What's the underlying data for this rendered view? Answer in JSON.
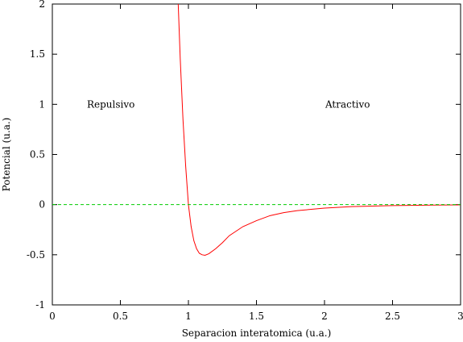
{
  "chart_data": {
    "type": "line",
    "xlabel": "Separacion interatomica (u.a.)",
    "ylabel": "Potencial (u.a.)",
    "xlim": [
      0,
      3
    ],
    "ylim": [
      -1,
      2
    ],
    "x_ticks": [
      0,
      0.5,
      1,
      1.5,
      2,
      2.5,
      3
    ],
    "x_tick_labels": [
      "0",
      "0.5",
      "1",
      "1.5",
      "2",
      "2.5",
      "3"
    ],
    "y_ticks": [
      -1,
      -0.5,
      0,
      0.5,
      1,
      1.5,
      2
    ],
    "y_tick_labels": [
      "-1",
      "-0.5",
      "0",
      "0.5",
      "1",
      "1.5",
      "2"
    ],
    "grid": false,
    "legend": "none",
    "series": [
      {
        "color": "#ff0000",
        "line_style": "solid",
        "x": [
          0.925,
          0.94,
          0.96,
          0.98,
          1.0,
          1.02,
          1.04,
          1.06,
          1.08,
          1.1,
          1.122,
          1.15,
          1.2,
          1.25,
          1.3,
          1.4,
          1.5,
          1.6,
          1.7,
          1.8,
          2.0,
          2.2,
          2.5,
          2.8,
          3.0
        ],
        "values": [
          2.0,
          1.45,
          0.85,
          0.38,
          0.0,
          -0.22,
          -0.36,
          -0.44,
          -0.485,
          -0.5,
          -0.505,
          -0.49,
          -0.44,
          -0.38,
          -0.31,
          -0.22,
          -0.16,
          -0.11,
          -0.08,
          -0.06,
          -0.035,
          -0.02,
          -0.01,
          -0.005,
          -0.003
        ]
      },
      {
        "color": "#00cc00",
        "line_style": "dashed",
        "x": [
          0,
          3
        ],
        "values": [
          0,
          0
        ]
      }
    ],
    "annotations": [
      {
        "text": "Repulsivo",
        "x": 0.43,
        "y": 1.0
      },
      {
        "text": "Atractivo",
        "x": 2.17,
        "y": 1.0
      }
    ]
  }
}
